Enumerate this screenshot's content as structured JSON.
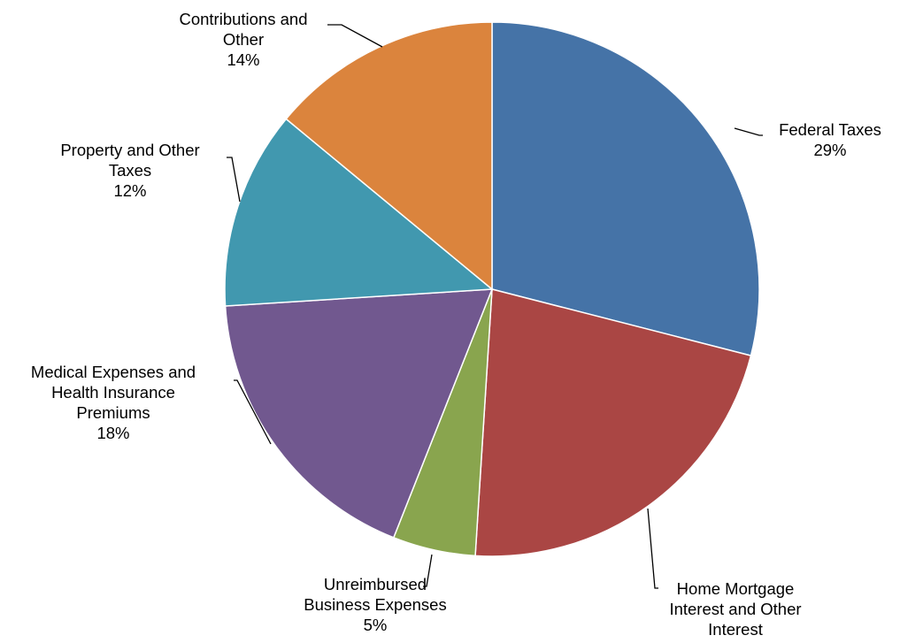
{
  "chart_data": {
    "type": "pie",
    "title": "",
    "slices": [
      {
        "label": [
          "Federal Taxes"
        ],
        "percent_label": "29%",
        "value": 29,
        "color": "#4573A7"
      },
      {
        "label": [
          "Home Mortgage",
          "Interest and Other",
          "Interest"
        ],
        "percent_label": "22%",
        "value": 22,
        "color": "#AA4644"
      },
      {
        "label": [
          "Unreimbursed",
          "Business Expenses"
        ],
        "percent_label": "5%",
        "value": 5,
        "color": "#89A54E"
      },
      {
        "label": [
          "Medical Expenses and",
          "Health Insurance",
          "Premiums"
        ],
        "percent_label": "18%",
        "value": 18,
        "color": "#71588F"
      },
      {
        "label": [
          "Property and Other",
          "Taxes"
        ],
        "percent_label": "12%",
        "value": 12,
        "color": "#4198AF"
      },
      {
        "label": [
          "Contributions and",
          "Other"
        ],
        "percent_label": "14%",
        "value": 14,
        "color": "#DB843D"
      }
    ],
    "start": "top",
    "direction": "clockwise",
    "legend": "none"
  }
}
